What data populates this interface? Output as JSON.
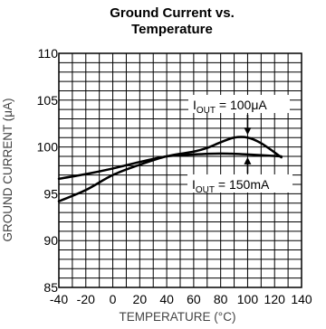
{
  "chart_data": {
    "type": "line",
    "title_line1": "Ground Current vs.",
    "title_line2": "Temperature",
    "xlabel": "TEMPERATURE (°C)",
    "ylabel": "GROUND CURRENT (μA)",
    "xlim": [
      -40,
      140
    ],
    "ylim": [
      85,
      110
    ],
    "xticks": [
      -40,
      -20,
      0,
      20,
      40,
      60,
      80,
      100,
      120,
      140
    ],
    "yticks": [
      85,
      90,
      95,
      100,
      105,
      110
    ],
    "grid": true,
    "series": [
      {
        "name": "I_OUT = 100μA",
        "x": [
          -40,
          -20,
          0,
          20,
          40,
          60,
          70,
          80,
          90,
          100,
          110,
          125
        ],
        "y": [
          94.2,
          95.4,
          97.0,
          98.1,
          99.0,
          99.5,
          99.9,
          100.5,
          101.0,
          101.0,
          100.4,
          98.9
        ]
      },
      {
        "name": "I_OUT = 150mA",
        "x": [
          -40,
          -20,
          0,
          20,
          40,
          60,
          80,
          100,
          125
        ],
        "y": [
          96.6,
          97.1,
          97.7,
          98.4,
          99.0,
          99.2,
          99.3,
          99.2,
          99.0
        ]
      }
    ],
    "annotations": [
      {
        "main": "I",
        "sub": "OUT",
        "rest": " = 100μA",
        "x": 100,
        "y": 101.0
      },
      {
        "main": "I",
        "sub": "OUT",
        "rest": " = 150mA",
        "x": 100,
        "y": 99.2
      }
    ]
  }
}
